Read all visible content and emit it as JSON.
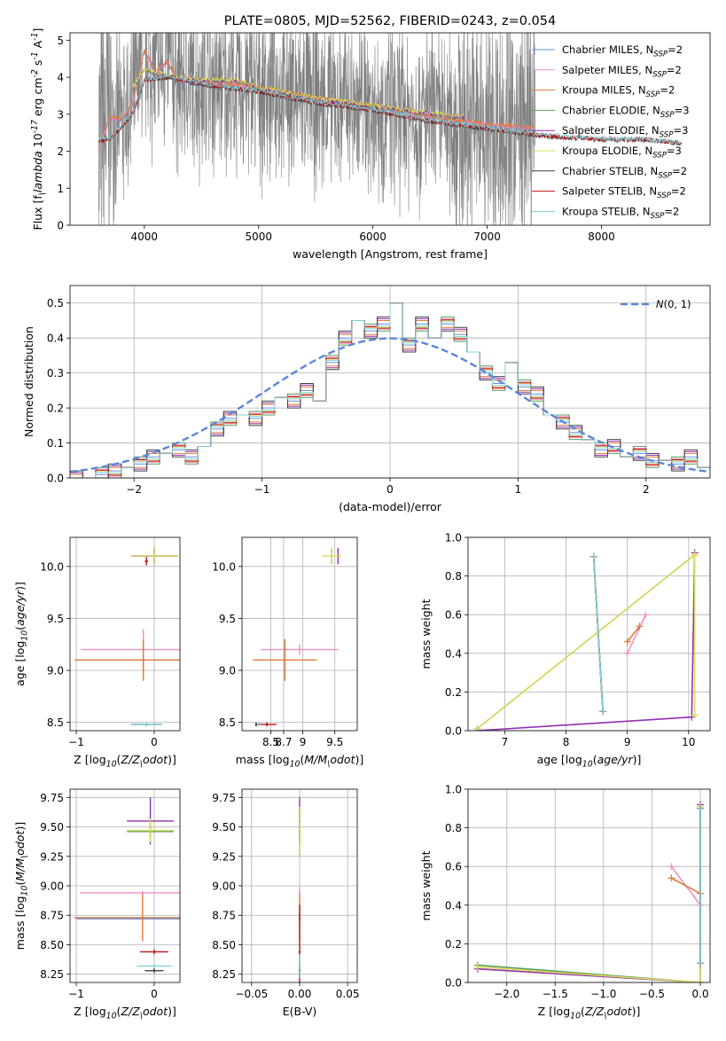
{
  "colors": {
    "spectrum": "#808080",
    "normal_curve": "#5b87d6",
    "models": [
      "#6b8fd8",
      "#f28fc2",
      "#e07b3a",
      "#5a9e5a",
      "#9030b0",
      "#dcdc5a",
      "#404040",
      "#c01010",
      "#7fd0d8"
    ]
  },
  "chart_data": [
    {
      "id": "spectrum",
      "type": "line",
      "title": "PLATE=0805, MJD=52562, FIBERID=0243, z=0.054",
      "xlabel": "wavelength [Angstrom, rest frame]",
      "ylabel": "Flux [f$_\\lambda$ 10$^{-17}$ erg cm$^{-2}$ s$^{-1}$ A$^{-1}$]",
      "xlim": [
        3350,
        8950
      ],
      "ylim": [
        0,
        5.2
      ],
      "xticks": [
        4000,
        5000,
        6000,
        7000,
        8000
      ],
      "yticks": [
        0,
        1,
        2,
        3,
        4,
        5
      ],
      "grid": false,
      "legend_position": "right",
      "observed": {
        "x_range": [
          3600,
          7420
        ],
        "color": "#808080"
      },
      "series": [
        {
          "name": "Chabrier MILES, N$_{SSP}$=2",
          "x": [
            3600,
            3700,
            3800,
            3900,
            4000,
            4100,
            4200,
            4300,
            4500,
            4700,
            5000,
            5500,
            6000,
            6500,
            7000,
            7400
          ],
          "y": [
            2.1,
            2.9,
            2.8,
            3.3,
            4.7,
            4.1,
            4.4,
            3.9,
            3.8,
            3.8,
            3.7,
            3.4,
            3.2,
            2.9,
            2.7,
            2.6
          ]
        },
        {
          "name": "Salpeter MILES, N$_{SSP}$=2",
          "x": [
            3600,
            3700,
            3800,
            3900,
            4000,
            4100,
            4200,
            4300,
            4500,
            4700,
            5000,
            5500,
            6000,
            6500,
            7000,
            7400
          ],
          "y": [
            2.1,
            2.9,
            2.8,
            3.3,
            4.7,
            4.1,
            4.4,
            3.9,
            3.8,
            3.8,
            3.7,
            3.4,
            3.2,
            2.9,
            2.7,
            2.6
          ]
        },
        {
          "name": "Kroupa MILES, N$_{SSP}$=2",
          "x": [
            3600,
            3700,
            3800,
            3900,
            4000,
            4100,
            4200,
            4300,
            4500,
            4700,
            5000,
            5500,
            6000,
            6500,
            7000,
            7400
          ],
          "y": [
            2.1,
            2.9,
            2.8,
            3.3,
            4.7,
            4.1,
            4.4,
            3.9,
            3.8,
            3.8,
            3.7,
            3.4,
            3.2,
            2.9,
            2.7,
            2.6
          ]
        },
        {
          "name": "Chabrier ELODIE, N$_{SSP}$=3",
          "x": [
            3900,
            4000,
            4200,
            4500,
            4800,
            5000,
            5500,
            6000,
            6500,
            6800
          ],
          "y": [
            3.7,
            4.2,
            4.0,
            3.9,
            3.9,
            3.7,
            3.4,
            3.2,
            3.0,
            2.9
          ]
        },
        {
          "name": "Salpeter ELODIE, N$_{SSP}$=3",
          "x": [
            3900,
            4000,
            4200,
            4500,
            4800,
            5000,
            5500,
            6000,
            6500,
            6800
          ],
          "y": [
            3.7,
            4.2,
            4.0,
            3.9,
            3.9,
            3.7,
            3.4,
            3.2,
            3.0,
            2.9
          ]
        },
        {
          "name": "Kroupa ELODIE, N$_{SSP}$=3",
          "x": [
            3900,
            4000,
            4200,
            4500,
            4800,
            5000,
            5500,
            6000,
            6500,
            6800
          ],
          "y": [
            3.7,
            4.2,
            4.0,
            3.9,
            3.9,
            3.7,
            3.4,
            3.2,
            3.0,
            2.9
          ]
        },
        {
          "name": "Chabrier STELIB, N$_{SSP}$=2",
          "x": [
            3600,
            3700,
            3900,
            4000,
            4200,
            4500,
            5000,
            5500,
            6000,
            6500,
            7000,
            7500,
            8000,
            8400,
            8700
          ],
          "y": [
            2.3,
            2.3,
            3.0,
            3.9,
            4.0,
            3.8,
            3.6,
            3.3,
            3.1,
            2.8,
            2.6,
            2.4,
            2.3,
            2.3,
            2.2
          ]
        },
        {
          "name": "Salpeter STELIB, N$_{SSP}$=2",
          "x": [
            3600,
            3700,
            3900,
            4000,
            4200,
            4500,
            5000,
            5500,
            6000,
            6500,
            7000,
            7500,
            8000,
            8400,
            8700
          ],
          "y": [
            2.3,
            2.3,
            3.0,
            3.9,
            4.0,
            3.8,
            3.6,
            3.3,
            3.1,
            2.8,
            2.6,
            2.4,
            2.3,
            2.3,
            2.2
          ]
        },
        {
          "name": "Kroupa STELIB, N$_{SSP}$=2",
          "x": [
            3600,
            3700,
            3900,
            4000,
            4200,
            4500,
            5000,
            5500,
            6000,
            6500,
            7000,
            7500,
            8000,
            8400,
            8700
          ],
          "y": [
            2.3,
            2.3,
            3.0,
            3.9,
            4.0,
            3.8,
            3.6,
            3.3,
            3.1,
            2.8,
            2.6,
            2.4,
            2.3,
            2.3,
            2.2
          ]
        }
      ]
    },
    {
      "id": "residuals",
      "type": "line",
      "xlabel": "(data-model)/error",
      "ylabel": "Normed distribution",
      "xlim": [
        -2.5,
        2.5
      ],
      "ylim": [
        0,
        0.55
      ],
      "xticks": [
        -2,
        -1,
        0,
        1,
        2
      ],
      "yticks": [
        0.0,
        0.1,
        0.2,
        0.3,
        0.4,
        0.5
      ],
      "grid": true,
      "legend_position": "top-right",
      "legend": "$\\mathcal{N}$(0, 1)",
      "bin_edges_from": -2.5,
      "bin_width": 0.1,
      "histogram": [
        0.0,
        0.0,
        0.01,
        0.02,
        0.03,
        0.04,
        0.06,
        0.07,
        0.08,
        0.06,
        0.09,
        0.14,
        0.17,
        0.18,
        0.17,
        0.2,
        0.23,
        0.22,
        0.25,
        0.22,
        0.33,
        0.4,
        0.45,
        0.42,
        0.44,
        0.5,
        0.38,
        0.44,
        0.4,
        0.44,
        0.41,
        0.36,
        0.3,
        0.27,
        0.33,
        0.26,
        0.24,
        0.18,
        0.16,
        0.13,
        0.11,
        0.08,
        0.09,
        0.06,
        0.07,
        0.05,
        0.05,
        0.04,
        0.06,
        0.03
      ],
      "histogram_offsets": [
        0,
        0.015,
        -0.01,
        0.02,
        -0.015,
        0.01,
        -0.02,
        0.012,
        0.006
      ]
    },
    {
      "id": "age_vs_Z",
      "type": "scatter",
      "xlabel": "Z [log$_{10}$($Z/Z_\\odot$)]",
      "ylabel": "age  [log$_{10}$($age/yr$)]",
      "xlim": [
        -1.08,
        0.33
      ],
      "ylim": [
        8.42,
        10.28
      ],
      "xticks": [
        -1,
        0
      ],
      "yticks": [
        8.5,
        9.0,
        9.5,
        10.0
      ],
      "grid": true,
      "points": [
        {
          "series": 0,
          "x": -0.14,
          "y": 9.1,
          "xerr": 0.86,
          "yerr": 0.15
        },
        {
          "series": 1,
          "x": -0.14,
          "y": 9.2,
          "xerr": 0.8,
          "yerr": 0.2
        },
        {
          "series": 2,
          "x": -0.14,
          "y": 9.1,
          "xerr": 0.88,
          "yerr": 0.2
        },
        {
          "series": 3,
          "x": 0.0,
          "y": 10.1,
          "xerr": 0.3,
          "yerr": 0.08
        },
        {
          "series": 4,
          "x": 0.0,
          "y": 10.1,
          "xerr": 0.3,
          "yerr": 0.08
        },
        {
          "series": 5,
          "x": 0.0,
          "y": 10.1,
          "xerr": 0.3,
          "yerr": 0.08
        },
        {
          "series": 6,
          "x": -0.1,
          "y": 8.48,
          "xerr": 0.2,
          "yerr": 0.02
        },
        {
          "series": 7,
          "x": -0.1,
          "y": 10.05,
          "xerr": 0.02,
          "yerr": 0.04
        },
        {
          "series": 8,
          "x": -0.1,
          "y": 8.48,
          "xerr": 0.2,
          "yerr": 0.02
        }
      ]
    },
    {
      "id": "age_vs_mass",
      "type": "scatter",
      "xlabel": "mass [log$_{10}$($M/M_\\odot$)]",
      "ylabel": "",
      "xlim": [
        8.05,
        9.85
      ],
      "ylim": [
        8.42,
        10.28
      ],
      "xticks": [
        8.5,
        8.7,
        9.0,
        9.5
      ],
      "yticks": [
        8.5,
        9.0,
        9.5,
        10.0
      ],
      "grid": true,
      "points": [
        {
          "series": 0,
          "x": 8.72,
          "y": 9.1,
          "xerr": 0.01,
          "yerr": 0.2
        },
        {
          "series": 1,
          "x": 8.95,
          "y": 9.2,
          "xerr": 0.6,
          "yerr": 0.05
        },
        {
          "series": 2,
          "x": 8.72,
          "y": 9.1,
          "xerr": 0.5,
          "yerr": 0.2
        },
        {
          "series": 3,
          "x": 9.45,
          "y": 10.1,
          "xerr": 0.01,
          "yerr": 0.08
        },
        {
          "series": 4,
          "x": 9.55,
          "y": 10.1,
          "xerr": 0.01,
          "yerr": 0.08
        },
        {
          "series": 5,
          "x": 9.45,
          "y": 10.1,
          "xerr": 0.15,
          "yerr": 0.08
        },
        {
          "series": 6,
          "x": 8.27,
          "y": 8.48,
          "xerr": 0.01,
          "yerr": 0.02
        },
        {
          "series": 7,
          "x": 8.44,
          "y": 8.48,
          "xerr": 0.15,
          "yerr": 0.02
        },
        {
          "series": 8,
          "x": 8.32,
          "y": 8.48,
          "xerr": 0.01,
          "yerr": 0.02
        }
      ]
    },
    {
      "id": "weight_vs_age",
      "type": "line",
      "xlabel": "age  [log$_{10}$($age/yr$)]",
      "ylabel": "mass weight",
      "xlim": [
        6.4,
        10.35
      ],
      "ylim": [
        0,
        1.0
      ],
      "xticks": [
        7,
        8,
        9,
        10
      ],
      "yticks": [
        0.0,
        0.2,
        0.4,
        0.6,
        0.8,
        1.0
      ],
      "grid": true,
      "series": [
        {
          "series": 0,
          "x": [
            8.45,
            8.6
          ],
          "y": [
            0.9,
            0.1
          ]
        },
        {
          "series": 1,
          "x": [
            9.0,
            9.3
          ],
          "y": [
            0.4,
            0.6
          ]
        },
        {
          "series": 2,
          "x": [
            9.0,
            9.2
          ],
          "y": [
            0.46,
            0.54
          ]
        },
        {
          "series": 3,
          "x": [
            6.55,
            10.1,
            10.1
          ],
          "y": [
            0.01,
            0.91,
            0.08
          ]
        },
        {
          "series": 4,
          "x": [
            6.55,
            10.05,
            10.1
          ],
          "y": [
            0.0,
            0.07,
            0.92
          ]
        },
        {
          "series": 5,
          "x": [
            6.55,
            10.1,
            10.1
          ],
          "y": [
            0.01,
            0.91,
            0.08
          ]
        },
        {
          "series": 6,
          "x": [
            8.45,
            8.6
          ],
          "y": [
            0.9,
            0.1
          ]
        },
        {
          "series": 7,
          "x": [
            8.45,
            8.6
          ],
          "y": [
            0.9,
            0.1
          ]
        },
        {
          "series": 8,
          "x": [
            8.45,
            8.6
          ],
          "y": [
            0.9,
            0.1
          ]
        }
      ]
    },
    {
      "id": "mass_vs_Z",
      "type": "scatter",
      "xlabel": "Z [log$_{10}$($Z/Z_\\odot$)]",
      "ylabel": "mass [log$_{10}$($M/M_\\odot$)]",
      "xlim": [
        -1.08,
        0.33
      ],
      "ylim": [
        8.18,
        9.82
      ],
      "xticks": [
        -1,
        0
      ],
      "yticks": [
        8.25,
        8.5,
        8.75,
        9.0,
        9.25,
        9.5,
        9.75
      ],
      "grid": true,
      "points": [
        {
          "series": 0,
          "x": -0.15,
          "y": 8.72,
          "xerr": 0.85,
          "yerr": 0.02
        },
        {
          "series": 1,
          "x": -0.15,
          "y": 8.94,
          "xerr": 0.8,
          "yerr": 0.02
        },
        {
          "series": 2,
          "x": -0.15,
          "y": 8.73,
          "xerr": 0.88,
          "yerr": 0.2
        },
        {
          "series": 3,
          "x": -0.05,
          "y": 9.46,
          "xerr": 0.3,
          "yerr": 0.05
        },
        {
          "series": 4,
          "x": -0.05,
          "y": 9.55,
          "xerr": 0.3,
          "yerr": 0.2
        },
        {
          "series": 5,
          "x": -0.05,
          "y": 9.47,
          "xerr": 0.3,
          "yerr": 0.1
        },
        {
          "series": 6,
          "x": 0.0,
          "y": 8.28,
          "xerr": 0.12,
          "yerr": 0.02
        },
        {
          "series": 7,
          "x": 0.0,
          "y": 8.44,
          "xerr": 0.18,
          "yerr": 0.02
        },
        {
          "series": 8,
          "x": 0.0,
          "y": 8.32,
          "xerr": 0.22,
          "yerr": 0.02
        }
      ]
    },
    {
      "id": "mass_vs_ebv",
      "type": "scatter",
      "xlabel": "E(B-V)",
      "ylabel": "",
      "xlim": [
        -0.06,
        0.06
      ],
      "ylim": [
        8.18,
        9.82
      ],
      "xticks": [
        -0.05,
        0.0,
        0.05
      ],
      "yticks": [
        8.25,
        8.5,
        8.75,
        9.0,
        9.25,
        9.5,
        9.75
      ],
      "grid": true,
      "points": [
        {
          "series": 0,
          "x": 0.0,
          "y": 8.72,
          "xerr": 0.0,
          "yerr": 0.05
        },
        {
          "series": 1,
          "x": 0.0,
          "y": 8.94,
          "xerr": 0.0,
          "yerr": 0.05
        },
        {
          "series": 2,
          "x": 0.0,
          "y": 8.73,
          "xerr": 0.0,
          "yerr": 0.2
        },
        {
          "series": 3,
          "x": 0.0,
          "y": 9.46,
          "xerr": 0.0,
          "yerr": 0.2
        },
        {
          "series": 4,
          "x": 0.0,
          "y": 9.55,
          "xerr": 0.0,
          "yerr": 0.2
        },
        {
          "series": 5,
          "x": 0.0,
          "y": 9.47,
          "xerr": 0.0,
          "yerr": 0.2
        },
        {
          "series": 6,
          "x": 0.0,
          "y": 8.28,
          "xerr": 0.0,
          "yerr": 0.05
        },
        {
          "series": 7,
          "x": 0.0,
          "y": 8.44,
          "xerr": 0.0,
          "yerr": 0.4
        },
        {
          "series": 8,
          "x": 0.0,
          "y": 8.32,
          "xerr": 0.0,
          "yerr": 0.1
        }
      ]
    },
    {
      "id": "weight_vs_Z",
      "type": "line",
      "xlabel": "Z [log$_{10}$($Z/Z_\\odot$)]",
      "ylabel": "mass weight",
      "xlim": [
        -2.4,
        0.1
      ],
      "ylim": [
        0,
        1.0
      ],
      "xticks": [
        -2.0,
        -1.5,
        -1.0,
        -0.5,
        0.0
      ],
      "yticks": [
        0.0,
        0.2,
        0.4,
        0.6,
        0.8,
        1.0
      ],
      "grid": true,
      "series": [
        {
          "series": 0,
          "x": [
            0.0,
            0.0
          ],
          "y": [
            0.9,
            0.1
          ]
        },
        {
          "series": 1,
          "x": [
            -0.3,
            0.0
          ],
          "y": [
            0.6,
            0.4
          ]
        },
        {
          "series": 2,
          "x": [
            -0.3,
            0.0
          ],
          "y": [
            0.54,
            0.46
          ]
        },
        {
          "series": 3,
          "x": [
            -2.3,
            0.0,
            0.0
          ],
          "y": [
            0.09,
            0.0,
            0.91
          ]
        },
        {
          "series": 4,
          "x": [
            -2.3,
            0.0,
            0.0
          ],
          "y": [
            0.07,
            0.0,
            0.92
          ]
        },
        {
          "series": 5,
          "x": [
            -2.3,
            0.0,
            0.0
          ],
          "y": [
            0.08,
            0.0,
            0.91
          ]
        },
        {
          "series": 6,
          "x": [
            0.0,
            0.0
          ],
          "y": [
            0.9,
            0.1
          ]
        },
        {
          "series": 7,
          "x": [
            0.0,
            0.0
          ],
          "y": [
            0.9,
            0.1
          ]
        },
        {
          "series": 8,
          "x": [
            0.0,
            0.0
          ],
          "y": [
            0.9,
            0.1
          ]
        }
      ]
    }
  ]
}
